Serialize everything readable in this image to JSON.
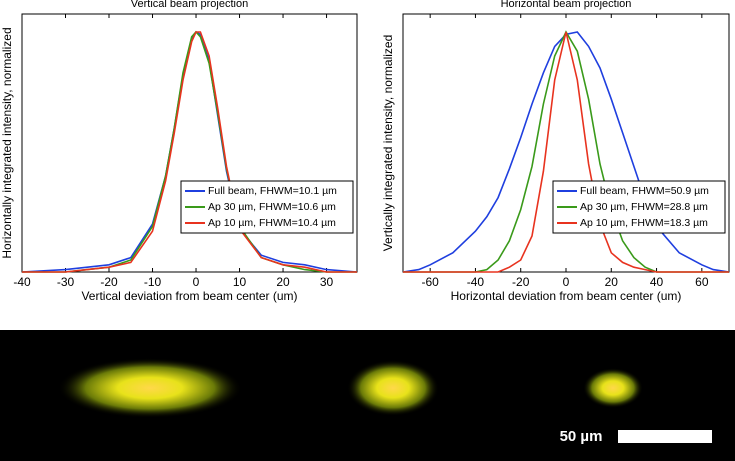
{
  "chart_data": [
    {
      "type": "line",
      "title": "Vertical beam projection",
      "x_label": "Vertical deviation from beam center (um)",
      "y_label": "Horizontally integrated intensity, normalized",
      "x": [
        -40,
        -30,
        -25,
        -20,
        -15,
        -10,
        -7,
        -5,
        -3,
        -1,
        0,
        1,
        3,
        5,
        7,
        10,
        15,
        20,
        25,
        30,
        37
      ],
      "series": [
        {
          "name": "Full beam, FHWM=10.1 µm",
          "color": "#1f3fdf",
          "values": [
            0,
            0.01,
            0.02,
            0.03,
            0.06,
            0.2,
            0.4,
            0.6,
            0.82,
            0.97,
            1,
            0.99,
            0.88,
            0.65,
            0.42,
            0.18,
            0.07,
            0.04,
            0.03,
            0.01,
            0
          ]
        },
        {
          "name": "Ap 30 µm, FHWM=10.6 µm",
          "color": "#3a9a1a",
          "values": [
            0,
            0,
            0.01,
            0.02,
            0.05,
            0.19,
            0.4,
            0.6,
            0.83,
            0.98,
            1,
            0.98,
            0.87,
            0.66,
            0.43,
            0.19,
            0.06,
            0.03,
            0.01,
            0,
            0
          ]
        },
        {
          "name": "Ap 10 µm, FHWM=10.4 µm",
          "color": "#e8331f",
          "values": [
            0,
            0,
            0.01,
            0.02,
            0.04,
            0.17,
            0.38,
            0.58,
            0.8,
            0.96,
            1,
            1,
            0.9,
            0.68,
            0.44,
            0.18,
            0.06,
            0.03,
            0.02,
            0,
            0
          ]
        }
      ],
      "xlim": [
        -40,
        37
      ],
      "ylim": [
        0,
        1.075
      ],
      "xticks": [
        -40,
        -30,
        -20,
        -10,
        0,
        10,
        20,
        30
      ],
      "legend": "center right"
    },
    {
      "type": "line",
      "title": "Horizontal beam projection",
      "x_label": "Horizontal deviation from beam center (um)",
      "y_label": "Vertically integrated intensity, normalized",
      "x": [
        -72,
        -65,
        -60,
        -50,
        -40,
        -35,
        -30,
        -25,
        -20,
        -15,
        -10,
        -5,
        0,
        5,
        10,
        15,
        20,
        25,
        30,
        35,
        40,
        50,
        60,
        65,
        72
      ],
      "series": [
        {
          "name": "Full beam, FHWM=50.9 µm",
          "color": "#1f3fdf",
          "values": [
            0,
            0.01,
            0.03,
            0.08,
            0.17,
            0.23,
            0.31,
            0.43,
            0.56,
            0.7,
            0.83,
            0.94,
            0.99,
            1,
            0.94,
            0.85,
            0.72,
            0.58,
            0.44,
            0.3,
            0.19,
            0.08,
            0.03,
            0.01,
            0
          ]
        },
        {
          "name": "Ap 30 µm, FHWM=28.8 µm",
          "color": "#3a9a1a",
          "values": [
            0,
            0,
            0,
            0,
            0,
            0.01,
            0.05,
            0.13,
            0.26,
            0.44,
            0.7,
            0.9,
            1,
            0.92,
            0.72,
            0.45,
            0.26,
            0.13,
            0.06,
            0.02,
            0,
            0,
            0,
            0,
            0
          ]
        },
        {
          "name": "Ap 10 µm, FHWM=18.3 µm",
          "color": "#e8331f",
          "values": [
            0,
            0,
            0,
            0,
            0,
            0,
            0,
            0.02,
            0.05,
            0.15,
            0.42,
            0.8,
            1,
            0.8,
            0.45,
            0.2,
            0.08,
            0.04,
            0.02,
            0.01,
            0,
            0,
            0,
            0,
            0
          ]
        }
      ],
      "xlim": [
        -72,
        72
      ],
      "ylim": [
        0,
        1.075
      ],
      "xticks": [
        -60,
        -40,
        -20,
        0,
        20,
        40,
        60
      ],
      "legend": "center right"
    }
  ],
  "image": {
    "scale_label": "50 µm"
  }
}
